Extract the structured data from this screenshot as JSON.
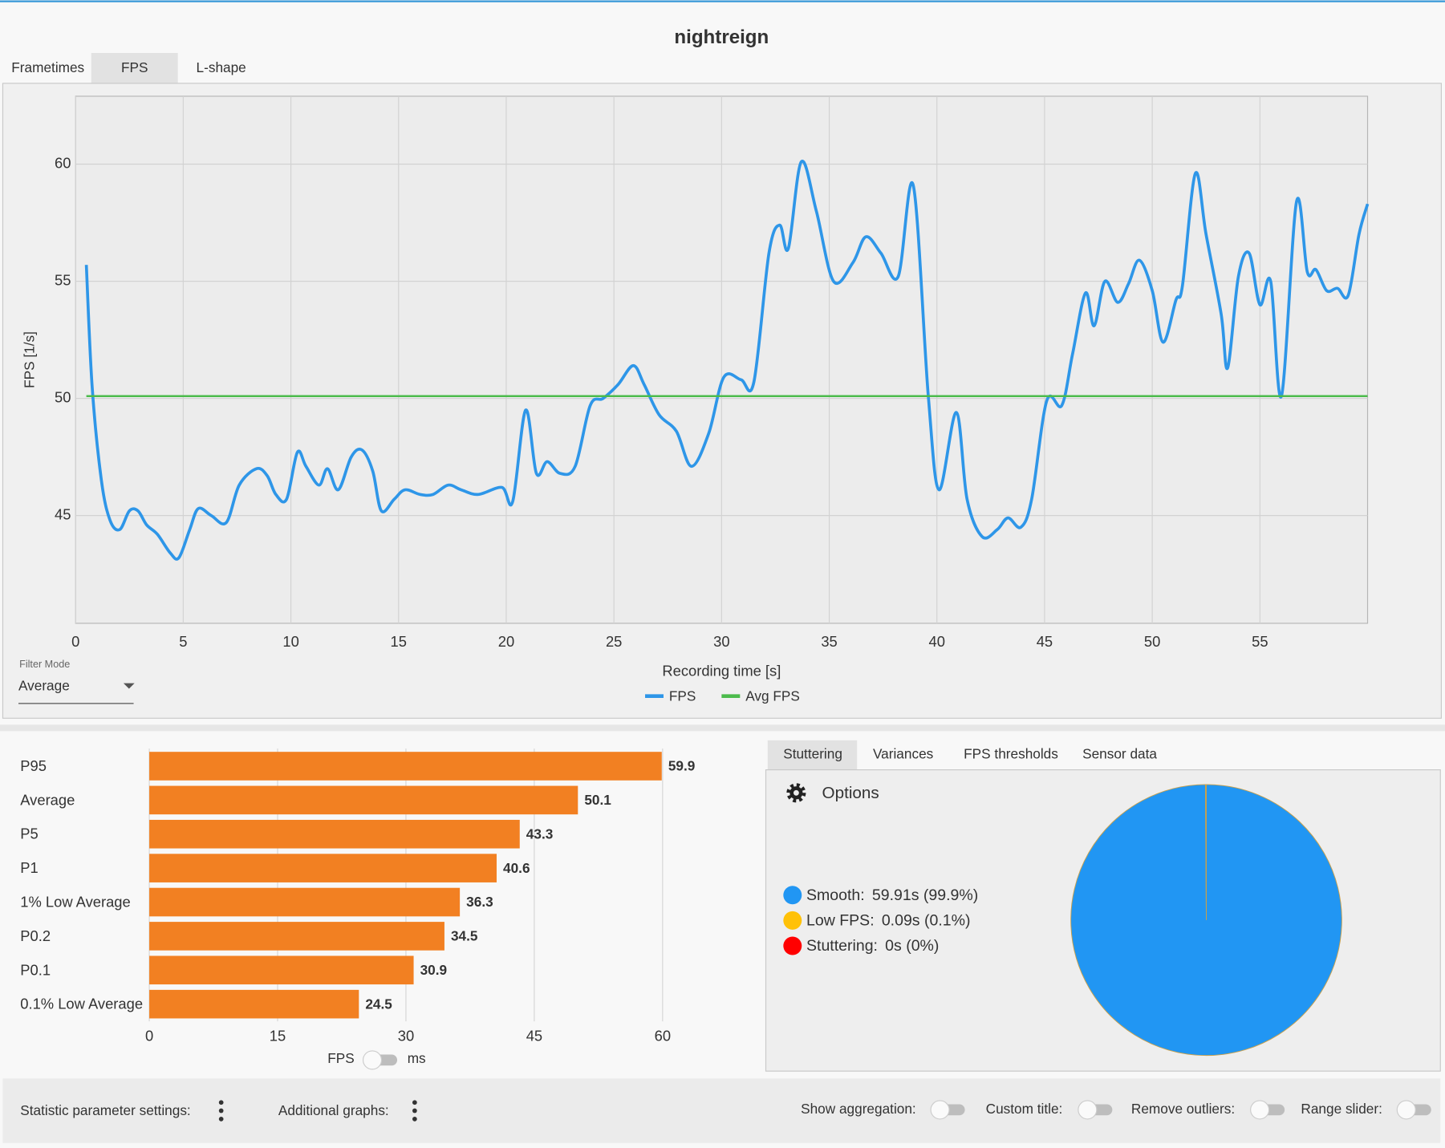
{
  "ui": {
    "tabs": [
      "Frametimes",
      "FPS",
      "L-shape"
    ],
    "filter_label": "Filter Mode",
    "filter_value": "Average",
    "unit_toggle": [
      "FPS",
      "ms"
    ],
    "stat_tabs": [
      "Stuttering",
      "Variances",
      "FPS thresholds",
      "Sensor data"
    ],
    "options": "Options",
    "bottom_bar": {
      "statistic": "Statistic parameter settings:",
      "additional": "Additional graphs:",
      "toggles": [
        "Show aggregation:",
        "Custom title:",
        "Remove outliers:",
        "Range slider:"
      ]
    }
  },
  "chart_data": [
    {
      "type": "line",
      "title": "nightreign",
      "x_label": "Recording time [s]",
      "y_label": "FPS [1/s]",
      "xlim": [
        0,
        60
      ],
      "xticks": [
        0,
        5,
        10,
        15,
        20,
        25,
        30,
        35,
        40,
        45,
        50,
        55
      ],
      "ylim": [
        40.4,
        62.9
      ],
      "yticks": [
        45,
        50,
        55,
        60
      ],
      "grid": true,
      "series": [
        {
          "name": "FPS",
          "color": "#2e96e8",
          "x": [
            0.5,
            0.77,
            1.2,
            1.6,
            2.05,
            2.5,
            2.9,
            3.3,
            3.8,
            4.4,
            4.8,
            5.3,
            5.7,
            6.3,
            7.0,
            7.6,
            8.4,
            8.9,
            9.3,
            9.8,
            10.3,
            10.7,
            11.3,
            11.7,
            12.2,
            12.8,
            13.3,
            13.8,
            14.2,
            14.8,
            15.3,
            16.0,
            16.6,
            17.3,
            17.9,
            18.7,
            19.8,
            20.3,
            20.9,
            21.4,
            21.9,
            22.5,
            23.2,
            23.9,
            24.5,
            25.2,
            25.9,
            26.4,
            27.1,
            27.9,
            28.6,
            29.4,
            30.1,
            30.9,
            31.5,
            32.2,
            32.7,
            33.1,
            33.7,
            34.4,
            35.2,
            36.1,
            36.7,
            37.4,
            38.2,
            38.9,
            39.6,
            40.1,
            40.9,
            41.4,
            42.1,
            42.8,
            43.3,
            43.9,
            44.4,
            45.1,
            45.8,
            46.3,
            46.9,
            47.3,
            47.8,
            48.4,
            48.9,
            49.4,
            50.0,
            50.5,
            51.1,
            51.4,
            52.0,
            52.5,
            53.2,
            53.5,
            54.0,
            54.5,
            55.0,
            55.5,
            56.0,
            56.7,
            57.2,
            57.6,
            58.1,
            58.6,
            59.1,
            59.6,
            60.0
          ],
          "values": [
            55.7,
            50.5,
            46.5,
            44.8,
            44.4,
            45.2,
            45.2,
            44.6,
            44.2,
            43.4,
            43.2,
            44.4,
            45.3,
            45.0,
            44.7,
            46.3,
            47.0,
            46.7,
            45.9,
            45.7,
            47.7,
            47.1,
            46.3,
            47.0,
            46.1,
            47.5,
            47.8,
            46.9,
            45.2,
            45.7,
            46.1,
            45.9,
            45.9,
            46.3,
            46.1,
            45.9,
            46.2,
            45.6,
            49.5,
            46.8,
            47.3,
            46.8,
            47.1,
            49.7,
            50.0,
            50.6,
            51.4,
            50.6,
            49.3,
            48.6,
            47.1,
            48.5,
            50.9,
            50.8,
            50.7,
            56.2,
            57.4,
            56.4,
            60.1,
            58.0,
            55.0,
            55.8,
            56.9,
            56.2,
            55.2,
            59.1,
            50.1,
            46.1,
            49.4,
            45.7,
            44.1,
            44.4,
            44.9,
            44.5,
            45.7,
            49.9,
            49.7,
            51.9,
            54.5,
            53.1,
            55.0,
            54.1,
            54.9,
            55.9,
            54.6,
            52.4,
            54.2,
            54.8,
            59.6,
            57.0,
            53.6,
            51.3,
            55.2,
            56.2,
            54.0,
            55.0,
            50.1,
            58.4,
            55.4,
            55.5,
            54.6,
            54.7,
            54.4,
            57.0,
            58.3
          ]
        },
        {
          "name": "Avg FPS",
          "color": "#4cbb4c",
          "x": [
            0.5,
            60
          ],
          "values": [
            50.1,
            50.1
          ]
        }
      ]
    },
    {
      "type": "bar",
      "orientation": "horizontal",
      "categories": [
        "P95",
        "Average",
        "P5",
        "P1",
        "1% Low Average",
        "P0.2",
        "P0.1",
        "0.1% Low Average"
      ],
      "values": [
        59.9,
        50.1,
        43.3,
        40.6,
        36.3,
        34.5,
        30.9,
        24.5
      ],
      "color": "#f28022",
      "xlim": [
        0,
        60
      ],
      "xticks": [
        0,
        15,
        30,
        45,
        60
      ],
      "grid": true
    },
    {
      "type": "pie",
      "categories": [
        "Smooth:",
        "Low FPS:",
        "Stuttering:"
      ],
      "values": [
        99.9,
        0.1,
        0
      ],
      "value_labels": [
        "59.91s (99.9%)",
        "0.09s (0.1%)",
        "0s (0%)"
      ],
      "colors": [
        "#2196f3",
        "#ffc107",
        "#ff0000"
      ]
    }
  ]
}
